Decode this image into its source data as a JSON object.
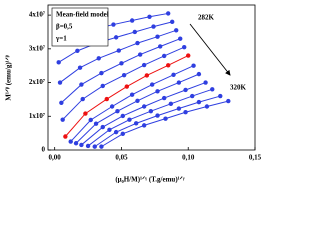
{
  "chart_data": {
    "type": "line",
    "title": "Mean-field model",
    "annotations": [
      "β=0,5",
      "γ=1",
      "282K",
      "320K"
    ],
    "x_label": "(μ₀H/M)¹ᐟᵞ (T.g/emu)¹ᐟᵞ",
    "y_label": "M¹ᐟᵝ (emu/g)¹ᐟᵝ",
    "xlim": [
      -0.005,
      0.15
    ],
    "xticks": [
      {
        "value": 0,
        "label": "0,00"
      },
      {
        "value": 0.05,
        "label": "0,05"
      },
      {
        "value": 0.1,
        "label": "0,10"
      },
      {
        "value": 0.15,
        "label": "0,15"
      }
    ],
    "ylim": [
      0,
      43000000.0
    ],
    "yticks": [
      0,
      {
        "value": 10000000.0,
        "label": "1x10⁷"
      },
      {
        "value": 20000000.0,
        "label": "2x10⁷"
      },
      {
        "value": 30000000.0,
        "label": "3x10⁷"
      },
      {
        "value": 40000000.0,
        "label": "4x10⁷"
      }
    ],
    "series": [
      {
        "color": "#2f3fe0",
        "x": [
          0.003,
          0.017,
          0.03,
          0.044,
          0.058,
          0.071,
          0.085
        ],
        "values": [
          32000000.0,
          34400000.0,
          35900000.0,
          37200000.0,
          38400000.0,
          39500000.0,
          40500000.0
        ]
      },
      {
        "color": "#2f3fe0",
        "x": [
          0.003,
          0.017,
          0.031,
          0.046,
          0.06,
          0.074,
          0.088
        ],
        "values": [
          26000000.0,
          29400000.0,
          31600000.0,
          33400000.0,
          35000000.0,
          36600000.0,
          38000000.0
        ]
      },
      {
        "color": "#2f3fe0",
        "x": [
          0.004,
          0.019,
          0.033,
          0.048,
          0.062,
          0.077,
          0.091
        ],
        "values": [
          20000000.0,
          24400000.0,
          27200000.0,
          29500000.0,
          31700000.0,
          33600000.0,
          35500000.0
        ]
      },
      {
        "color": "#2f3fe0",
        "x": [
          0.005,
          0.02,
          0.035,
          0.05,
          0.064,
          0.079,
          0.094
        ],
        "values": [
          14000000.0,
          19400000.0,
          22800000.0,
          25700000.0,
          28300000.0,
          30700000.0,
          33000000.0
        ]
      },
      {
        "color": "#2f3fe0",
        "x": [
          0.006,
          0.021,
          0.036,
          0.052,
          0.067,
          0.082,
          0.097
        ],
        "values": [
          9000000.0,
          15100000.0,
          19000000.0,
          22200000.0,
          25200000.0,
          27900000.0,
          30500000.0
        ]
      },
      {
        "color": "#ee1111",
        "x": [
          0.008,
          0.023,
          0.039,
          0.054,
          0.069,
          0.085,
          0.1
        ],
        "values": [
          4000000.0,
          10800000.0,
          15100000.0,
          18800000.0,
          22100000.0,
          25100000.0,
          28000000.0
        ]
      },
      {
        "color": "#2f3fe0",
        "x": [
          0.012,
          0.027,
          0.043,
          0.058,
          0.073,
          0.089,
          0.104
        ],
        "values": [
          2500000.0,
          8900000.0,
          12900000.0,
          16400000.0,
          19400000.0,
          22300000.0,
          25000000.0
        ]
      },
      {
        "color": "#2f3fe0",
        "x": [
          0.016,
          0.031,
          0.047,
          0.062,
          0.077,
          0.093,
          0.108
        ],
        "values": [
          2000000.0,
          7800000.0,
          11500000.0,
          14600000.0,
          17400000.0,
          20000000.0,
          22500000.0
        ]
      },
      {
        "color": "#2f3fe0",
        "x": [
          0.02,
          0.036,
          0.051,
          0.067,
          0.082,
          0.098,
          0.113
        ],
        "values": [
          1500000.0,
          6800000.0,
          10100000.0,
          12900000.0,
          15400000.0,
          17800000.0,
          20000000.0
        ]
      },
      {
        "color": "#2f3fe0",
        "x": [
          0.025,
          0.041,
          0.056,
          0.072,
          0.087,
          0.103,
          0.118
        ],
        "values": [
          1200000.0,
          6000000.0,
          9000000.0,
          11500000.0,
          13700000.0,
          16000000.0,
          18000000.0
        ]
      },
      {
        "color": "#2f3fe0",
        "x": [
          0.03,
          0.046,
          0.061,
          0.077,
          0.093,
          0.108,
          0.124
        ],
        "values": [
          1000000.0,
          5300000.0,
          7900000.0,
          10200000.0,
          12300000.0,
          14200000.0,
          16000000.0
        ]
      },
      {
        "color": "#2f3fe0",
        "x": [
          0.035,
          0.051,
          0.067,
          0.083,
          0.098,
          0.114,
          0.13
        ],
        "values": [
          1000000.0,
          4800000.0,
          7300000.0,
          9300000.0,
          11200000.0,
          12900000.0,
          14500000.0
        ]
      }
    ]
  }
}
